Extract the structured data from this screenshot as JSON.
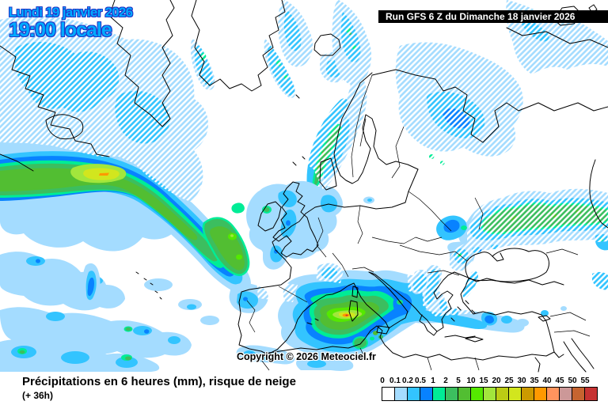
{
  "header": {
    "date_line1": "Lundi 19 janvier 2026",
    "date_line2": "19:00 locale",
    "run_label": "Run GFS 6 Z du Dimanche 18 janvier 2026"
  },
  "map": {
    "copyright": "Copyright © 2026 Meteociel.fr",
    "hatch_meaning": "risque de neige"
  },
  "footer": {
    "title": "Précipitations en 6 heures (mm), risque de neige",
    "subtitle": "(+ 36h)"
  },
  "legend": {
    "unit": "mm",
    "ticks": [
      "0",
      "0.1",
      "0.2",
      "0.5",
      "1",
      "2",
      "5",
      "10",
      "15",
      "20",
      "25",
      "30",
      "35",
      "40",
      "45",
      "50",
      "55"
    ],
    "colors": [
      "#FFFFFF",
      "#A4DCFF",
      "#33C4FF",
      "#0882FF",
      "#00EC96",
      "#3CBE5F",
      "#52BE32",
      "#55E800",
      "#A2E63C",
      "#BCCC14",
      "#D2E61E",
      "#CC9A00",
      "#FF9900",
      "#FF945E",
      "#CC9898",
      "#C66430",
      "#C63232"
    ]
  },
  "colors": {
    "date_text": "#00AAFF",
    "date_outline": "#2238C8",
    "run_bar_bg": "#000000",
    "run_bar_text": "#FFFFFF",
    "sea": "#FFFFFF",
    "coastline": "#000000"
  }
}
